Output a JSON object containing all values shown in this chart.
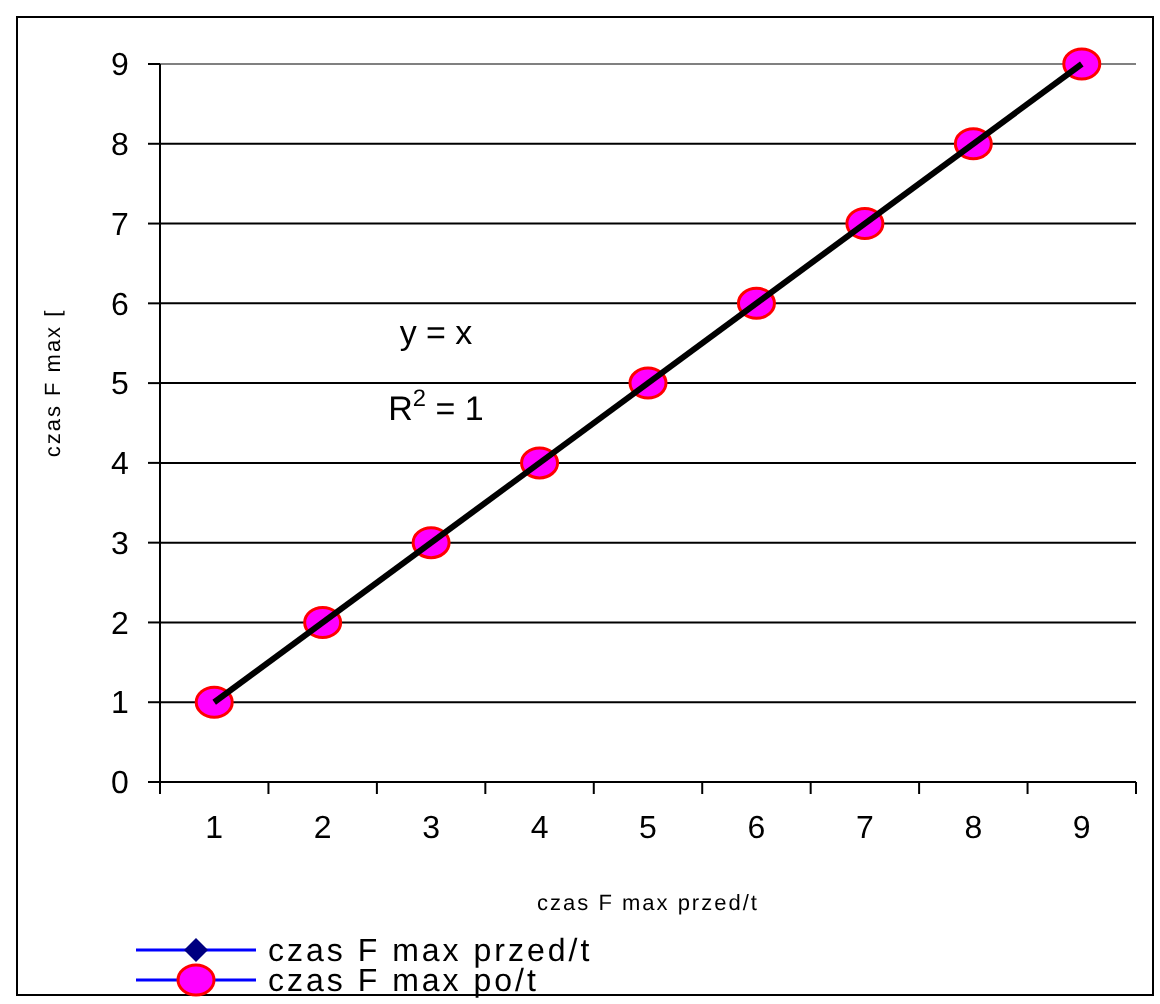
{
  "chart_data": {
    "type": "line",
    "xlabel": "czas F max przed/t",
    "ylabel": "czas F max [",
    "categories": [
      "1",
      "2",
      "3",
      "4",
      "5",
      "6",
      "7",
      "8",
      "9"
    ],
    "ylim": [
      0,
      9
    ],
    "yticks": [
      0,
      1,
      2,
      3,
      4,
      5,
      6,
      7,
      8,
      9
    ],
    "grid": "y",
    "legend": "bottom left",
    "series": [
      {
        "type": "scatter",
        "name": "czas F max przed/t",
        "color": "#000080",
        "marker": "diamond",
        "values": [
          null,
          null,
          null,
          null,
          null,
          null,
          null,
          null,
          null
        ]
      },
      {
        "type": "scatter",
        "name": "czas F max po/t",
        "color": "#ff00ff",
        "marker": "circle",
        "values": [
          1,
          2,
          3,
          4,
          5,
          6,
          7,
          8,
          9
        ]
      },
      {
        "color": "#000000",
        "x": [
          "1",
          "9"
        ],
        "values": [
          1,
          9
        ]
      }
    ],
    "annotations": [
      "y = x",
      "R$^{2}$ = 1"
    ]
  }
}
